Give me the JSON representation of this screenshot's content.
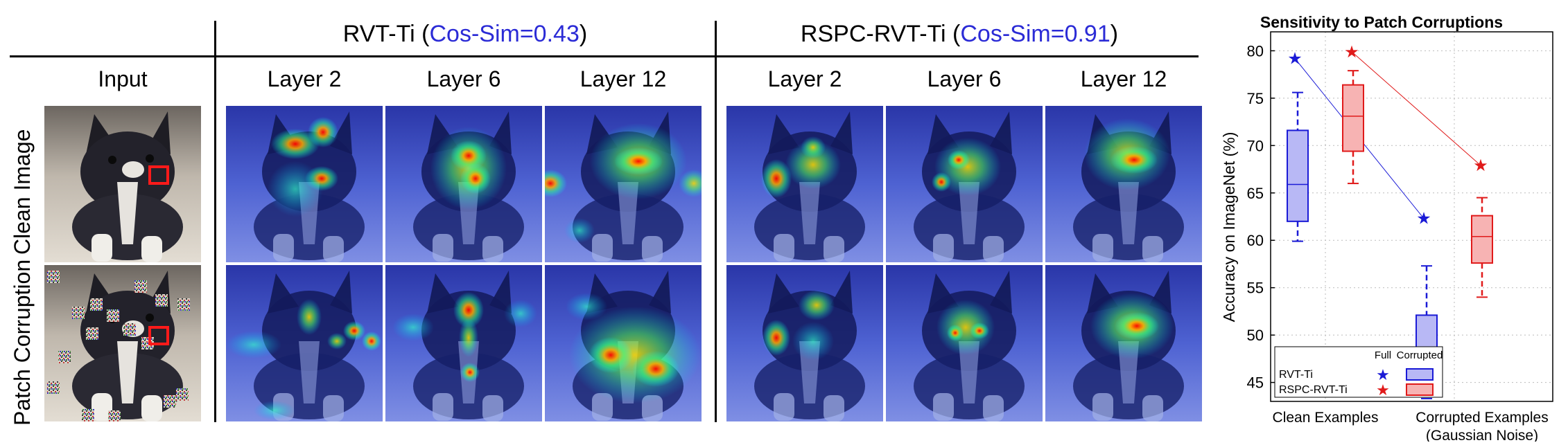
{
  "figure": {
    "groups": [
      {
        "model": "RVT-Ti",
        "cos_sim": "Cos-Sim=0.43"
      },
      {
        "model": "RSPC-RVT-Ti",
        "cos_sim": "Cos-Sim=0.91"
      }
    ],
    "input_label": "Input",
    "layer_labels": [
      "Layer 2",
      "Layer 6",
      "Layer 12"
    ],
    "row_labels": [
      "Clean Image",
      "Patch Corruption"
    ]
  },
  "chart_data": {
    "type": "box",
    "title": "Sensitivity to Patch Corruptions",
    "ylabel": "Accuracy on ImageNet (%)",
    "xlabel": "",
    "ylim": [
      43,
      82
    ],
    "yticks": [
      45,
      50,
      55,
      60,
      65,
      70,
      75,
      80
    ],
    "categories": [
      "Clean Examples",
      "Corrupted Examples\n(Gaussian Noise)"
    ],
    "grid": true,
    "legend_position": "bottom-left",
    "legend_columns": [
      "Full",
      "Corrupted"
    ],
    "series": [
      {
        "name": "RVT-Ti",
        "color": "#1a1ad6",
        "fill": "#b8b8f5",
        "full": [
          79.2,
          62.3
        ],
        "boxes": [
          {
            "whisker_low": 59.9,
            "q1": 62.0,
            "median": 65.9,
            "q3": 71.6,
            "whisker_high": 75.6
          },
          {
            "whisker_low": 43.3,
            "q1": 45.0,
            "median": 48.2,
            "q3": 52.1,
            "whisker_high": 57.3
          }
        ]
      },
      {
        "name": "RSPC-RVT-Ti",
        "color": "#e01a1a",
        "fill": "#f7b3b3",
        "full": [
          79.9,
          67.9
        ],
        "boxes": [
          {
            "whisker_low": 66.0,
            "q1": 69.4,
            "median": 73.1,
            "q3": 76.4,
            "whisker_high": 77.9
          },
          {
            "whisker_low": 54.0,
            "q1": 57.6,
            "median": 60.4,
            "q3": 62.6,
            "whisker_high": 64.5
          }
        ]
      }
    ]
  }
}
